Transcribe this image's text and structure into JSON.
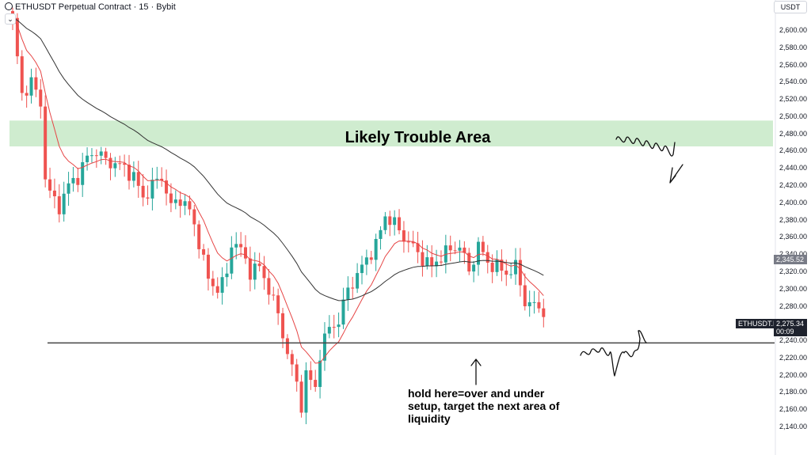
{
  "header": {
    "title": "ETHUSDT Perpetual Contract · 15 · Bybit",
    "toggle_glyph": "⌄",
    "currency": "USDT"
  },
  "icons": {
    "logo": "exchange-logo-icon",
    "toggle": "chevron-down-icon"
  },
  "colors": {
    "up": "#26a69a",
    "down": "#ef5350",
    "ema_fast": "#e64545",
    "ema_slow": "#333333",
    "zone": "#cfeccf",
    "support_line": "#444444",
    "tag_dark": "#1e222d",
    "tag_gray": "#787b86"
  },
  "annotations": {
    "zone_label": "Likely Trouble Area",
    "note": "hold here=over and under setup, target the next area of liquidity"
  },
  "price_tags": {
    "symbol": "ETHUSDT.P",
    "last_price": "2,275.34",
    "countdown": "00:09",
    "ma_value": "2,345.52"
  },
  "chart_data": {
    "type": "candlestick",
    "title": "ETHUSDT Perpetual Contract · 15 · Bybit",
    "ylim": [
      2130,
      2620
    ],
    "y_ticks": [
      2140,
      2160,
      2180,
      2200,
      2220,
      2240,
      2260,
      2280,
      2300,
      2320,
      2340,
      2360,
      2380,
      2400,
      2420,
      2440,
      2460,
      2480,
      2500,
      2520,
      2540,
      2560,
      2580,
      2600
    ],
    "y_tick_labels": [
      "2,140.00",
      "2,160.00",
      "2,180.00",
      "2,200.00",
      "2,220.00",
      "2,240.00",
      "2,260.00",
      "2,280.00",
      "2,300.00",
      "2,320.00",
      "2,340.00",
      "2,360.00",
      "2,380.00",
      "2,400.00",
      "2,420.00",
      "2,440.00",
      "2,460.00",
      "2,480.00",
      "2,500.00",
      "2,520.00",
      "2,540.00",
      "2,560.00",
      "2,580.00",
      "2,600.00"
    ],
    "candle_count": 115,
    "close_anchors": [
      [
        0,
        2610
      ],
      [
        2,
        2525
      ],
      [
        4,
        2540
      ],
      [
        6,
        2515
      ],
      [
        7,
        2430
      ],
      [
        8,
        2410
      ],
      [
        10,
        2395
      ],
      [
        12,
        2420
      ],
      [
        14,
        2430
      ],
      [
        16,
        2452
      ],
      [
        18,
        2460
      ],
      [
        20,
        2448
      ],
      [
        22,
        2445
      ],
      [
        24,
        2440
      ],
      [
        26,
        2430
      ],
      [
        28,
        2405
      ],
      [
        30,
        2420
      ],
      [
        32,
        2430
      ],
      [
        34,
        2395
      ],
      [
        36,
        2405
      ],
      [
        38,
        2390
      ],
      [
        40,
        2355
      ],
      [
        42,
        2310
      ],
      [
        44,
        2300
      ],
      [
        46,
        2315
      ],
      [
        47,
        2355
      ],
      [
        49,
        2345
      ],
      [
        51,
        2320
      ],
      [
        53,
        2325
      ],
      [
        55,
        2300
      ],
      [
        57,
        2270
      ],
      [
        59,
        2225
      ],
      [
        61,
        2190
      ],
      [
        62,
        2165
      ],
      [
        63,
        2200
      ],
      [
        65,
        2185
      ],
      [
        66,
        2225
      ],
      [
        68,
        2255
      ],
      [
        70,
        2262
      ],
      [
        72,
        2300
      ],
      [
        74,
        2315
      ],
      [
        76,
        2335
      ],
      [
        78,
        2350
      ],
      [
        80,
        2385
      ],
      [
        82,
        2375
      ],
      [
        84,
        2360
      ],
      [
        86,
        2348
      ],
      [
        88,
        2335
      ],
      [
        90,
        2325
      ],
      [
        92,
        2338
      ],
      [
        94,
        2345
      ],
      [
        96,
        2350
      ],
      [
        98,
        2320
      ],
      [
        100,
        2350
      ],
      [
        102,
        2330
      ],
      [
        104,
        2325
      ],
      [
        106,
        2318
      ],
      [
        108,
        2325
      ],
      [
        110,
        2285
      ],
      [
        112,
        2280
      ],
      [
        114,
        2275
      ]
    ],
    "series": [
      {
        "name": "",
        "kind": "ema",
        "period": 9
      },
      {
        "name": "",
        "kind": "ema",
        "period": 34
      }
    ],
    "support_level": 2237,
    "zone_range": [
      2465,
      2495
    ]
  }
}
